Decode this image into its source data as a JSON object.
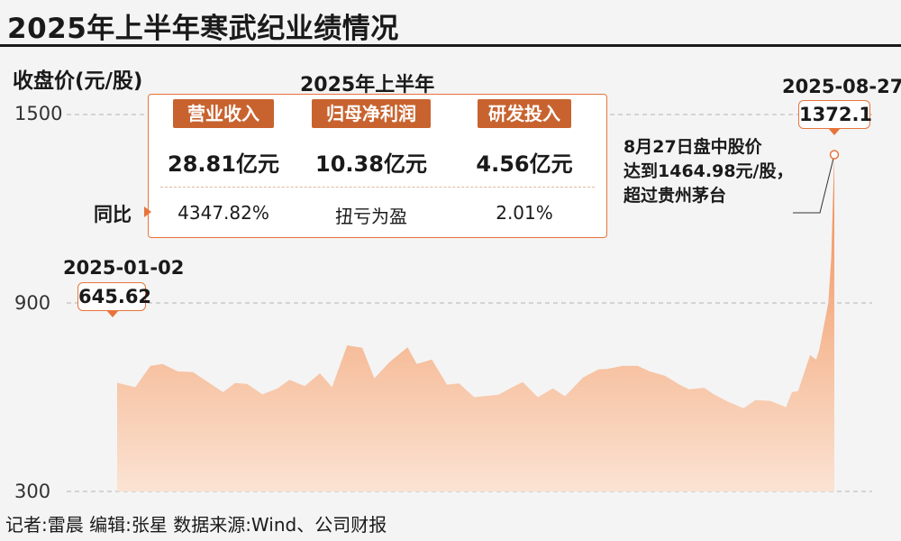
{
  "title": "2025年上半年寒武纪业绩情况",
  "summary": {
    "title": "2025年上半年",
    "yoy_label": "同比",
    "metrics": [
      {
        "name": "营业收入",
        "value": "28.81亿元",
        "yoy": "4347.82%"
      },
      {
        "name": "归母净利润",
        "value": "10.38亿元",
        "yoy": "扭亏为盈"
      },
      {
        "name": "研发投入",
        "value": "4.56亿元",
        "yoy": "2.01%"
      }
    ]
  },
  "annotations": {
    "start": {
      "date": "2025-01-02",
      "value": "645.62"
    },
    "end": {
      "date": "2025-08-27",
      "value": "1372.1"
    },
    "note_lines": [
      "8月27日盘中股价",
      "达到1464.98元/股，",
      "超过贵州茅台"
    ]
  },
  "credit": "记者:雷晨  编辑:张星  数据来源:Wind、公司财报",
  "colors": {
    "accent": "#e8743b",
    "badge": "#c8632f",
    "area_top": "#ef8a4f",
    "area_bottom": "#fbe3d3"
  },
  "chart_data": {
    "type": "area",
    "ylabel": "收盘价(元/股)",
    "yticks": [
      1500,
      900,
      300
    ],
    "ylim": [
      300,
      1500
    ],
    "xlim": [
      "2025-01-02",
      "2025-08-27"
    ],
    "grid": true,
    "x": [
      "2025-01-02",
      "2025-01-08",
      "2025-01-13",
      "2025-01-17",
      "2025-01-22",
      "2025-01-27",
      "2025-02-06",
      "2025-02-10",
      "2025-02-14",
      "2025-02-19",
      "2025-02-24",
      "2025-02-28",
      "2025-03-05",
      "2025-03-10",
      "2025-03-14",
      "2025-03-19",
      "2025-03-24",
      "2025-03-28",
      "2025-04-02",
      "2025-04-08",
      "2025-04-11",
      "2025-04-16",
      "2025-04-21",
      "2025-04-25",
      "2025-04-30",
      "2025-05-08",
      "2025-05-13",
      "2025-05-16",
      "2025-05-21",
      "2025-05-26",
      "2025-05-30",
      "2025-06-05",
      "2025-06-10",
      "2025-06-13",
      "2025-06-18",
      "2025-06-23",
      "2025-06-27",
      "2025-07-02",
      "2025-07-07",
      "2025-07-10",
      "2025-07-15",
      "2025-07-18",
      "2025-07-23",
      "2025-07-28",
      "2025-08-01",
      "2025-08-06",
      "2025-08-11",
      "2025-08-13",
      "2025-08-15",
      "2025-08-19",
      "2025-08-21",
      "2025-08-22",
      "2025-08-25",
      "2025-08-26",
      "2025-08-27"
    ],
    "values": [
      645.62,
      632,
      700,
      706,
      682,
      680,
      616,
      645,
      642,
      609,
      628,
      655,
      635,
      676,
      632,
      765,
      757,
      660,
      712,
      759,
      706,
      720,
      640,
      644,
      600,
      608,
      634,
      648,
      600,
      628,
      603,
      663,
      688,
      690,
      700,
      700,
      682,
      668,
      639,
      625,
      630,
      610,
      585,
      565,
      591,
      588,
      568,
      616,
      619,
      734,
      720,
      750,
      900,
      1045,
      1372.1
    ]
  }
}
